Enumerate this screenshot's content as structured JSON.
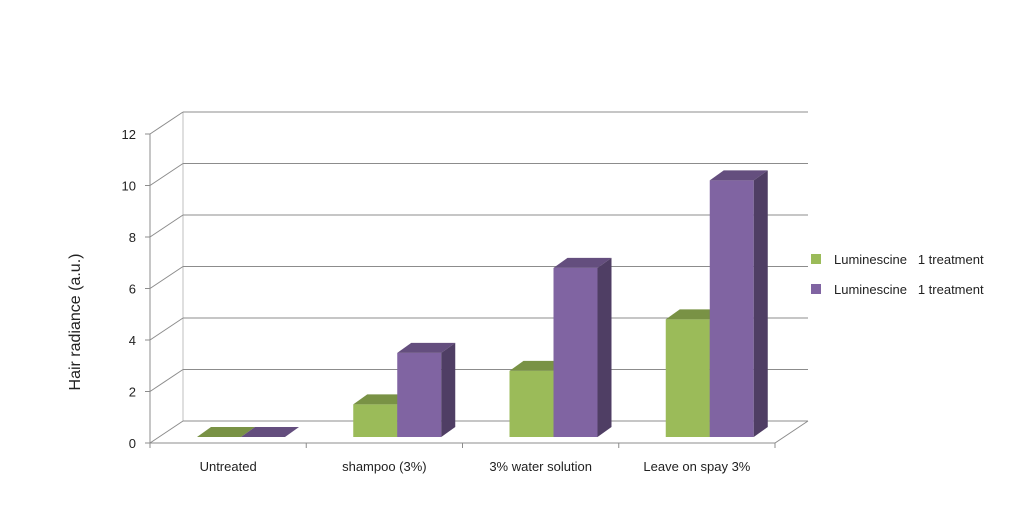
{
  "chart_data": {
    "type": "bar",
    "style": "3d-clustered-column",
    "categories": [
      "Untreated",
      "shampoo (3%)",
      "3% water solution",
      "Leave on spay 3%"
    ],
    "series": [
      {
        "name": "Luminescine   1 treatment",
        "color": "#9BBB59",
        "values": [
          0,
          1.5,
          2.8,
          4.8
        ]
      },
      {
        "name": "Luminescine   1 treatment",
        "color": "#8064A2",
        "values": [
          0,
          3.5,
          6.8,
          10.2
        ]
      }
    ],
    "ylabel": "Hair radiance (a.u.)",
    "ylim": [
      0,
      12
    ],
    "yticks": [
      0,
      2,
      4,
      6,
      8,
      10,
      12
    ],
    "grid": true,
    "legend": "right"
  }
}
